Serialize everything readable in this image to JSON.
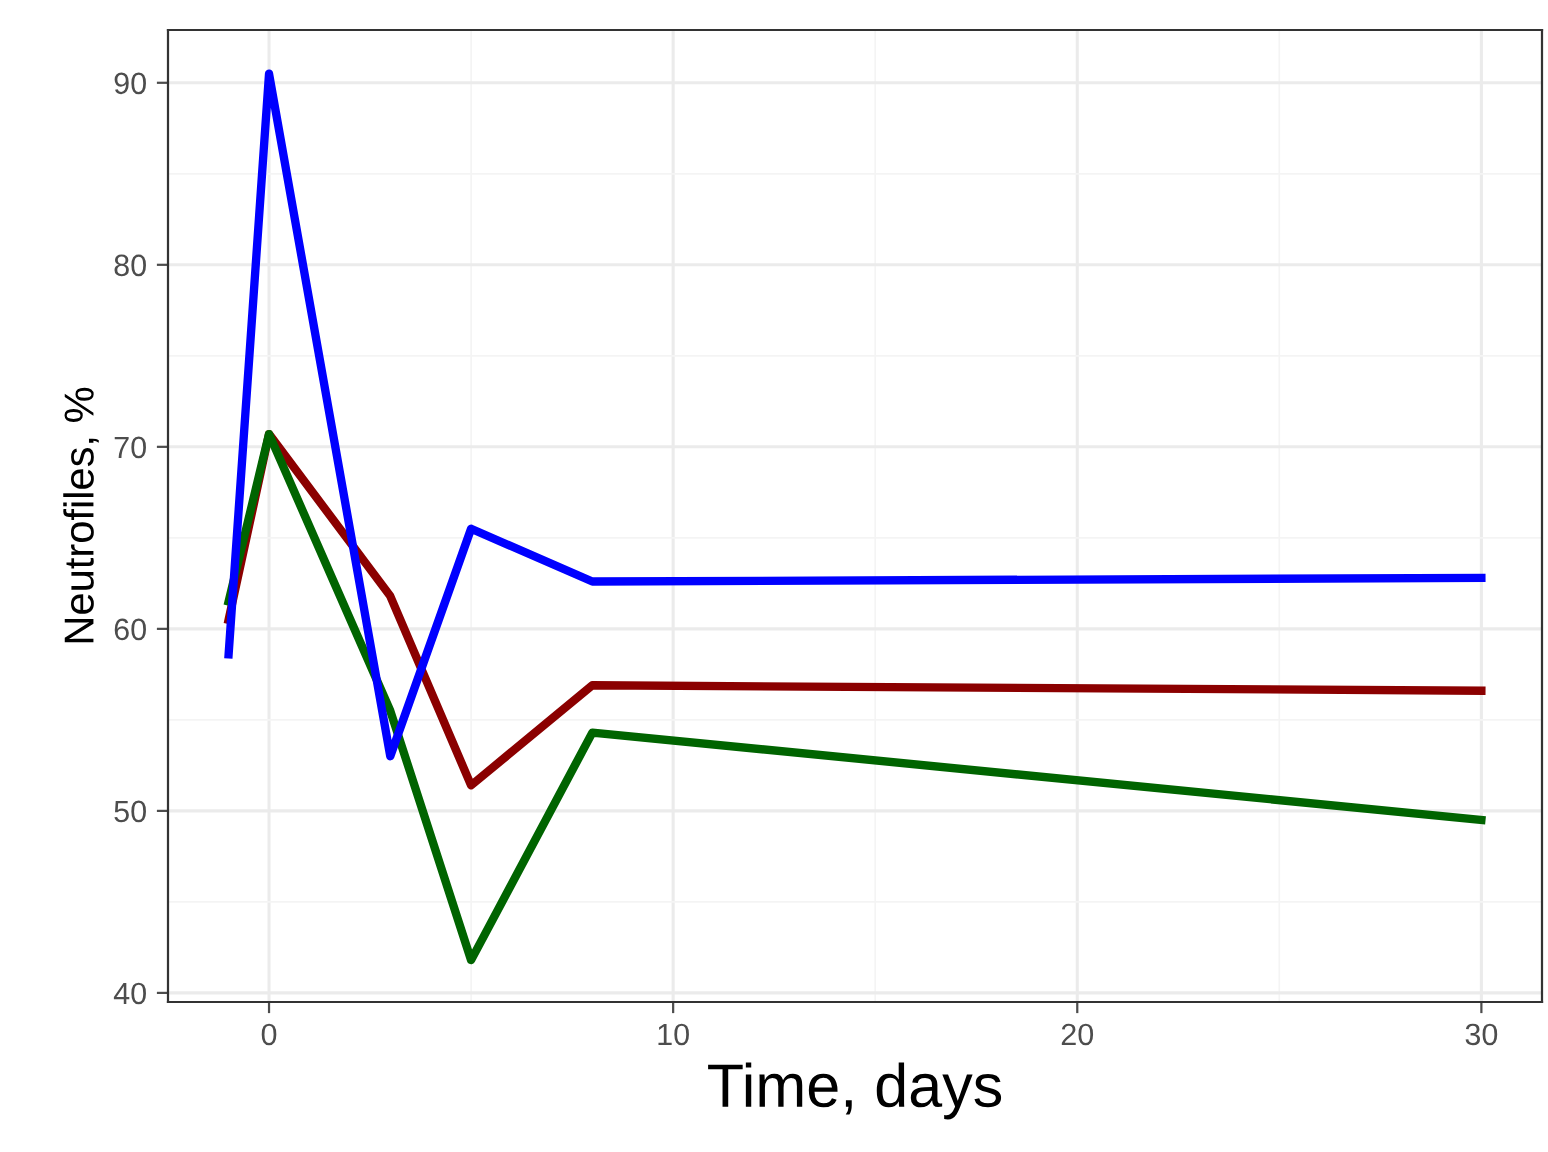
{
  "chart_data": {
    "type": "line",
    "xlabel": "Time, days",
    "ylabel": "Neutrofiles, %",
    "x": [
      -1,
      0,
      3,
      5,
      8,
      30
    ],
    "series": [
      {
        "color": "#8b0000",
        "values": [
          60.5,
          70.7,
          61.8,
          51.4,
          56.9,
          56.6
        ]
      },
      {
        "color": "#006400",
        "values": [
          61.5,
          70.7,
          55.5,
          41.8,
          54.3,
          49.5
        ]
      },
      {
        "color": "#0000ff",
        "values": [
          58.6,
          90.5,
          53.0,
          65.5,
          62.6,
          62.8
        ]
      }
    ],
    "xlim": [
      -2.5,
      31.5
    ],
    "ylim": [
      39.5,
      92.9
    ],
    "xticks": [
      0,
      {
        "value": 5,
        "label": null
      },
      10,
      {
        "value": 15,
        "label": null
      },
      20,
      {
        "value": 25,
        "label": null
      },
      30
    ],
    "yticks": [
      40,
      {
        "value": 45,
        "label": null
      },
      50,
      {
        "value": 55,
        "label": null
      },
      60,
      {
        "value": 65,
        "label": null
      },
      70,
      {
        "value": 75,
        "label": null
      },
      80,
      {
        "value": 85,
        "label": null
      },
      90
    ],
    "grid": true,
    "legend": false,
    "marker": "none",
    "line_style": "solid"
  }
}
